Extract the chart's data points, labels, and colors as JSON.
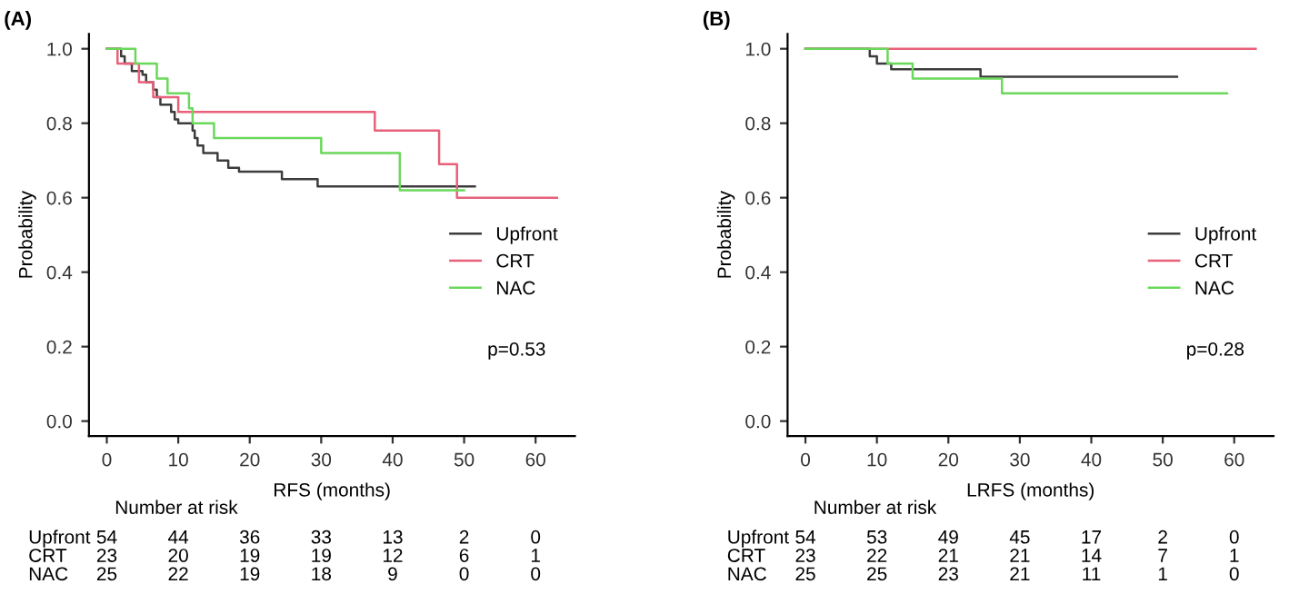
{
  "chart_data": [
    {
      "type": "step",
      "title": "(A)",
      "xlabel": "RFS (months)",
      "ylabel": "Probability",
      "xlim": [
        -2.5,
        65.5
      ],
      "ylim": [
        -0.04,
        1.04
      ],
      "xticks": [
        0,
        10,
        20,
        30,
        40,
        50,
        60
      ],
      "yticks": [
        {
          "value": 0,
          "label": "0.0"
        },
        {
          "value": 0.2,
          "label": "0.2"
        },
        {
          "value": 0.4,
          "label": "0.4"
        },
        {
          "value": 0.6,
          "label": "0.6"
        },
        {
          "value": 0.8,
          "label": "0.8"
        },
        {
          "value": 1,
          "label": "1.0"
        }
      ],
      "grid": false,
      "legend": "bottom right",
      "marker": "none",
      "line_style": "solid",
      "series": [
        {
          "name": "Upfront",
          "color": "#3c3c3c",
          "x": [
            0,
            2,
            2.5,
            3.5,
            5,
            5.5,
            6.5,
            7,
            7.5,
            9,
            9.5,
            10,
            12,
            12.3,
            12.7,
            13.5,
            15.5,
            17,
            18.5,
            24.5,
            29.5,
            51.5
          ],
          "values": [
            1,
            0.98,
            0.96,
            0.94,
            0.93,
            0.91,
            0.89,
            0.87,
            0.85,
            0.83,
            0.81,
            0.8,
            0.78,
            0.76,
            0.74,
            0.72,
            0.7,
            0.68,
            0.67,
            0.65,
            0.63,
            0.63
          ]
        },
        {
          "name": "CRT",
          "color": "#e8607a",
          "x": [
            0,
            1.5,
            4.5,
            6.5,
            10,
            37.5,
            46.5,
            49,
            63
          ],
          "values": [
            1,
            0.96,
            0.91,
            0.87,
            0.83,
            0.78,
            0.69,
            0.6,
            0.6
          ]
        },
        {
          "name": "NAC",
          "color": "#6ad85a",
          "x": [
            0,
            4,
            7,
            8.5,
            11.5,
            12,
            15,
            30,
            41,
            50
          ],
          "values": [
            1,
            0.96,
            0.92,
            0.88,
            0.84,
            0.8,
            0.76,
            0.72,
            0.62,
            0.62
          ]
        }
      ],
      "annotations": [
        "p=0.53",
        "Number at risk",
        "Upfront",
        "54",
        "44",
        "36",
        "33",
        "13",
        "2",
        "0",
        "CRT",
        "23",
        "20",
        "19",
        "19",
        "12",
        "6",
        "1",
        "NAC",
        "25",
        "22",
        "19",
        "18",
        "9",
        "0",
        "0"
      ]
    },
    {
      "type": "step",
      "title": "(B)",
      "xlabel": "LRFS (months)",
      "ylabel": "Probability",
      "xlim": [
        -2.5,
        65.5
      ],
      "ylim": [
        -0.04,
        1.04
      ],
      "xticks": [
        0,
        10,
        20,
        30,
        40,
        50,
        60
      ],
      "yticks": [
        {
          "value": 0,
          "label": "0.0"
        },
        {
          "value": 0.2,
          "label": "0.2"
        },
        {
          "value": 0.4,
          "label": "0.4"
        },
        {
          "value": 0.6,
          "label": "0.6"
        },
        {
          "value": 0.8,
          "label": "0.8"
        },
        {
          "value": 1,
          "label": "1.0"
        }
      ],
      "grid": false,
      "legend": "bottom right",
      "marker": "none",
      "line_style": "solid",
      "series": [
        {
          "name": "Upfront",
          "color": "#3c3c3c",
          "x": [
            0,
            9,
            10,
            12,
            24.5,
            52
          ],
          "values": [
            1,
            0.98,
            0.96,
            0.945,
            0.925,
            0.925
          ]
        },
        {
          "name": "CRT",
          "color": "#e8607a",
          "x": [
            0,
            63
          ],
          "values": [
            1,
            1
          ]
        },
        {
          "name": "NAC",
          "color": "#6ad85a",
          "x": [
            0,
            11.5,
            15,
            27.5,
            59
          ],
          "values": [
            1,
            0.96,
            0.92,
            0.88,
            0.88
          ]
        }
      ],
      "annotations": [
        "p=0.28",
        "Number at risk",
        "Upfront",
        "54",
        "53",
        "49",
        "45",
        "17",
        "2",
        "0",
        "CRT",
        "23",
        "22",
        "21",
        "21",
        "14",
        "7",
        "1",
        "NAC",
        "25",
        "25",
        "23",
        "21",
        "11",
        "1",
        "0"
      ]
    }
  ]
}
